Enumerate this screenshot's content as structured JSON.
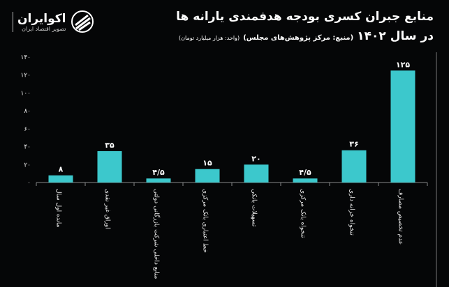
{
  "header": {
    "title": "منابع جبران کسری بودجه هدفمندی یارانه ها",
    "subtitle_year": "در سال ۱۴۰۲",
    "subtitle_source": "(منبع: مرکز پژوهش‌های مجلس)",
    "subtitle_unit": "(واحد: هزار میلیارد تومان)"
  },
  "logo": {
    "name": "اکوایران",
    "tagline": "تصویر اقتصاد ایران"
  },
  "chart_data": {
    "type": "bar",
    "title": "منابع جبران کسری بودجه هدفمندی یارانه ها در سال ۱۴۰۲",
    "categories": [
      "مانده اول سال",
      "اوراق غیر نقدی",
      "منابع داخلی شرکت بازرگانی دولتی",
      "خط اعتباری بانک مرکزی",
      "تسهیلات بانکی",
      "تنخواه بانک مرکزی",
      "تنخواه خزانه داری",
      "عدم تخصیص مصارف"
    ],
    "values": [
      8,
      35,
      4.5,
      15,
      20,
      4.5,
      36,
      125
    ],
    "data_labels": [
      "۸",
      "۳۵",
      "۴/۵",
      "۱۵",
      "۲۰",
      "۴/۵",
      "۳۶",
      "۱۲۵"
    ],
    "ylim": [
      0,
      140
    ],
    "yticks": [
      0,
      20,
      40,
      60,
      80,
      100,
      120,
      140
    ],
    "ytick_labels": [
      "۰",
      "۲۰",
      "۴۰",
      "۶۰",
      "۸۰",
      "۱۰۰",
      "۱۲۰",
      "۱۴۰"
    ],
    "grid": false,
    "bar_color": "#3cc8cc",
    "xlabel": "",
    "ylabel": ""
  }
}
